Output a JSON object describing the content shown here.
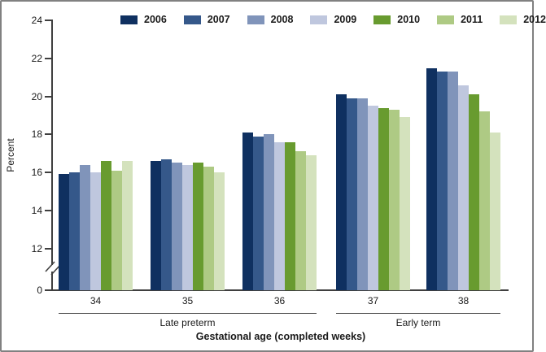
{
  "figure": {
    "ylabel": "Percent",
    "xlabel": "Gestational age (completed weeks)",
    "axis_color": "#3f3f3f",
    "background_color": "#ffffff",
    "border_color": "#818181",
    "group_brackets": [
      {
        "label": "Late preterm",
        "from_category": 0,
        "to_category": 2
      },
      {
        "label": "Early term",
        "from_category": 3,
        "to_category": 4
      }
    ]
  },
  "chart_data": {
    "type": "bar",
    "title": "",
    "xlabel": "Gestational age (completed weeks)",
    "ylabel": "Percent",
    "categories": [
      "34",
      "35",
      "36",
      "37",
      "38"
    ],
    "series": [
      {
        "name": "2006",
        "color": "#0f3060",
        "values": [
          15.9,
          16.6,
          18.1,
          20.1,
          21.5
        ]
      },
      {
        "name": "2007",
        "color": "#35588a",
        "values": [
          16.0,
          16.7,
          17.9,
          19.9,
          21.3
        ]
      },
      {
        "name": "2008",
        "color": "#8094ba",
        "values": [
          16.4,
          16.5,
          18.0,
          19.9,
          21.3
        ]
      },
      {
        "name": "2009",
        "color": "#bfc7de",
        "values": [
          16.0,
          16.4,
          17.6,
          19.5,
          20.6
        ]
      },
      {
        "name": "2010",
        "color": "#689b2f",
        "values": [
          16.6,
          16.5,
          17.6,
          19.4,
          20.1
        ]
      },
      {
        "name": "2011",
        "color": "#aeca84",
        "values": [
          16.1,
          16.3,
          17.1,
          19.3,
          19.2
        ]
      },
      {
        "name": "2012",
        "color": "#d4e2bd",
        "values": [
          16.6,
          16.0,
          16.9,
          18.9,
          18.1
        ]
      }
    ],
    "y_ticks": [
      24,
      22,
      20,
      18,
      16,
      14,
      12,
      0
    ],
    "y_axis": {
      "broken": true,
      "break_between": [
        0,
        12
      ],
      "displayed_range": [
        12,
        24
      ]
    },
    "grid": false,
    "legend_position": "top"
  }
}
